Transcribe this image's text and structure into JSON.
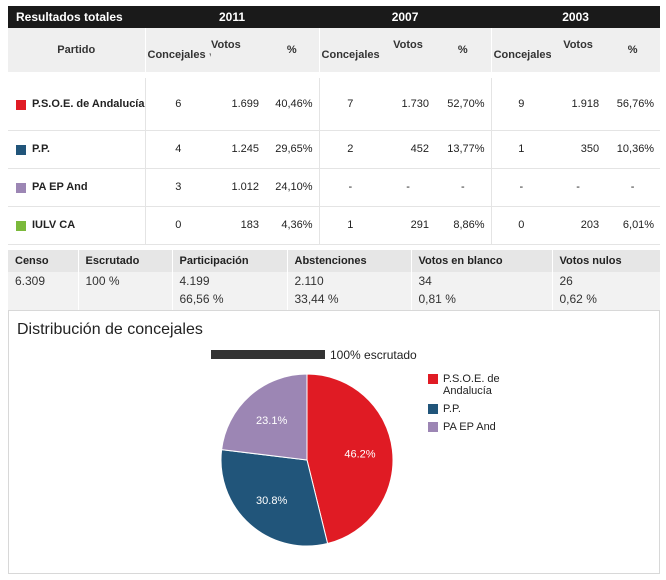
{
  "header": {
    "title": "Resultados totales",
    "years": [
      "2011",
      "2007",
      "2003"
    ]
  },
  "columns": {
    "partido": "Partido",
    "concejales": "Concejales",
    "votos": "Votos",
    "pct": "%"
  },
  "parties": [
    {
      "name": "P.S.O.E. de Andalucía",
      "color": "#e01b24",
      "y2011": {
        "concejales": "6",
        "votos": "1.699",
        "pct": "40,46%"
      },
      "y2007": {
        "concejales": "7",
        "votos": "1.730",
        "pct": "52,70%"
      },
      "y2003": {
        "concejales": "9",
        "votos": "1.918",
        "pct": "56,76%"
      }
    },
    {
      "name": "P.P.",
      "color": "#21557a",
      "y2011": {
        "concejales": "4",
        "votos": "1.245",
        "pct": "29,65%"
      },
      "y2007": {
        "concejales": "2",
        "votos": "452",
        "pct": "13,77%"
      },
      "y2003": {
        "concejales": "1",
        "votos": "350",
        "pct": "10,36%"
      }
    },
    {
      "name": "PA EP And",
      "color": "#9c86b4",
      "y2011": {
        "concejales": "3",
        "votos": "1.012",
        "pct": "24,10%"
      },
      "y2007": {
        "concejales": "-",
        "votos": "-",
        "pct": "-"
      },
      "y2003": {
        "concejales": "-",
        "votos": "-",
        "pct": "-"
      }
    },
    {
      "name": "IULV CA",
      "color": "#7bb93b",
      "y2011": {
        "concejales": "0",
        "votos": "183",
        "pct": "4,36%"
      },
      "y2007": {
        "concejales": "1",
        "votos": "291",
        "pct": "8,86%"
      },
      "y2003": {
        "concejales": "0",
        "votos": "203",
        "pct": "6,01%"
      }
    }
  ],
  "summary": {
    "headers": [
      "Censo",
      "Escrutado",
      "Participación",
      "Abstenciones",
      "Votos en blanco",
      "Votos nulos"
    ],
    "row1": [
      "6.309",
      "100 %",
      "4.199",
      "2.110",
      "34",
      "26"
    ],
    "row2": [
      "",
      "",
      "66,56 %",
      "33,44 %",
      "0,81 %",
      "0,62 %"
    ]
  },
  "distribution": {
    "title": "Distribución de concejales",
    "progress_fraction": 1.0,
    "progress_label": "100% escrutado"
  },
  "chart_data": {
    "type": "pie",
    "title": "Distribución de concejales",
    "categories": [
      "P.S.O.E. de Andalucía",
      "P.P.",
      "PA EP And"
    ],
    "values": [
      46.2,
      30.8,
      23.1
    ],
    "labels": [
      "46.2%",
      "30.8%",
      "23.1%"
    ],
    "colors": [
      "#e01b24",
      "#21557a",
      "#9c86b4"
    ],
    "legend": "right"
  }
}
